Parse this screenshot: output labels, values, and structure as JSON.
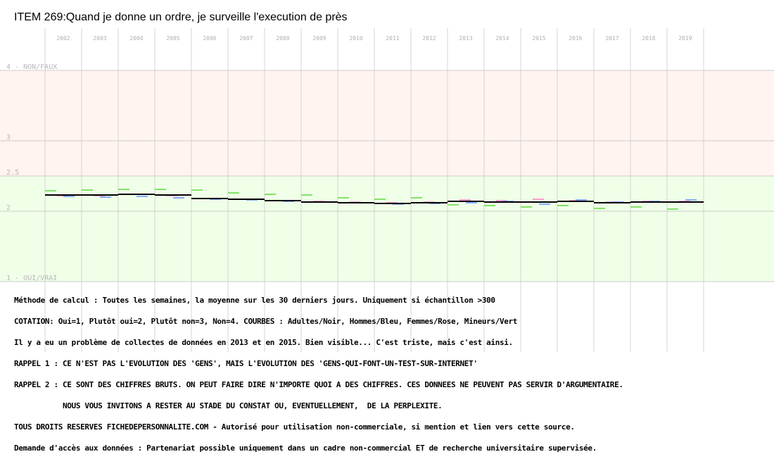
{
  "chart_data": {
    "type": "line",
    "title": "ITEM 269:Quand je donne un ordre, je surveille l'execution de près",
    "x": [
      "2002",
      "2003",
      "2004",
      "2005",
      "2006",
      "2007",
      "2008",
      "2009",
      "2010",
      "2011",
      "2012",
      "2013",
      "2014",
      "2015",
      "2016",
      "2017",
      "2018",
      "2019"
    ],
    "ylim": [
      1,
      4
    ],
    "y_ticks": [
      {
        "value": 4,
        "label": "4 - NON/FAUX"
      },
      {
        "value": 3,
        "label": "3"
      },
      {
        "value": 2.5,
        "label": "2.5"
      },
      {
        "value": 2,
        "label": "2"
      },
      {
        "value": 1,
        "label": "1 - OUI/VRAI"
      }
    ],
    "background_bands": [
      {
        "from": 2.5,
        "to": 4,
        "color": "#fff4ef"
      },
      {
        "from": 1,
        "to": 2.5,
        "color": "#f0ffe8"
      }
    ],
    "grid": true,
    "series": [
      {
        "color": "#000000",
        "values": [
          2.23,
          2.23,
          2.24,
          2.23,
          2.18,
          2.17,
          2.15,
          2.13,
          2.12,
          2.11,
          2.12,
          2.14,
          2.13,
          2.13,
          2.14,
          2.12,
          2.13,
          2.13
        ]
      },
      {
        "color": "#ff88cc",
        "values": [
          2.22,
          2.22,
          2.24,
          2.22,
          2.18,
          2.17,
          2.15,
          2.14,
          2.13,
          2.12,
          2.13,
          2.16,
          2.15,
          2.17,
          2.15,
          2.13,
          2.14,
          2.14
        ]
      },
      {
        "color": "#6699ff",
        "values": [
          2.21,
          2.2,
          2.21,
          2.19,
          2.17,
          2.16,
          2.14,
          2.13,
          2.12,
          2.1,
          2.11,
          2.12,
          2.14,
          2.1,
          2.16,
          2.13,
          2.14,
          2.16
        ]
      },
      {
        "color": "#66dd44",
        "values": [
          2.29,
          2.3,
          2.31,
          2.31,
          2.3,
          2.26,
          2.24,
          2.23,
          2.19,
          2.17,
          2.19,
          2.09,
          2.08,
          2.06,
          2.08,
          2.04,
          2.06,
          2.03
        ]
      }
    ]
  },
  "notes": [
    "Méthode de calcul : Toutes les semaines, la moyenne sur les 30 derniers jours. Uniquement si échantillon >300",
    "COTATION: Oui=1, Plutôt oui=2, Plutôt non=3, Non=4. COURBES : Adultes/Noir, Hommes/Bleu, Femmes/Rose, Mineurs/Vert",
    "Il y a eu un problème de collectes de données en 2013 et en 2015. Bien visible... C'est triste, mais c'est ainsi.",
    "RAPPEL 1 : CE N'EST PAS L'EVOLUTION DES 'GENS', MAIS L'EVOLUTION DES 'GENS-QUI-FONT-UN-TEST-SUR-INTERNET'",
    "RAPPEL 2 : CE SONT DES CHIFFRES BRUTS. ON PEUT FAIRE DIRE N'IMPORTE QUOI A DES CHIFFRES. CES DONNEES NE PEUVENT PAS SERVIR D'ARGUMENTAIRE.",
    "           NOUS VOUS INVITONS A RESTER AU STADE DU CONSTAT OU, EVENTUELLEMENT,  DE LA PERPLEXITE.",
    "TOUS DROITS RESERVES FICHEDEPERSONNALITE.COM - Autorisé pour utilisation non-commerciale, si mention et lien vers cette source.",
    "Demande d'accès aux données : Partenariat possible uniquement dans un cadre non-commercial ET de recherche universitaire supervisée."
  ]
}
